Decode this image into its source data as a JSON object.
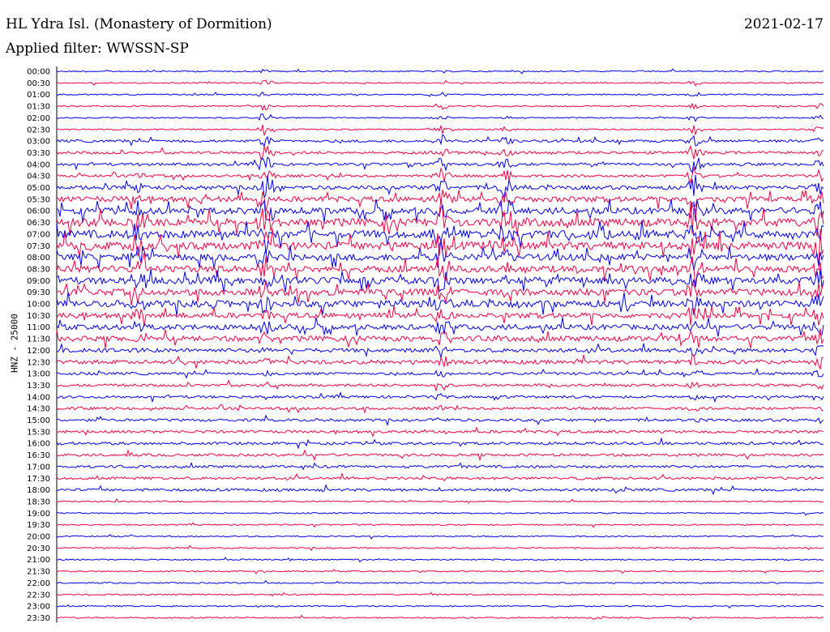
{
  "header": {
    "title": "HL Ydra Isl. (Monastery of Dormition)",
    "date": "2021-02-17",
    "filter": "Applied filter: WWSSN-SP",
    "channel_label": "HNZ - 25000"
  },
  "colors": {
    "line_a": "#0000ff",
    "line_b": "#ff0040"
  },
  "chart_data": {
    "type": "line",
    "title": "HL Ydra Isl. (Monastery of Dormition)",
    "ylabel": "HNZ - 25000",
    "trace_labels": [
      "00:00",
      "00:30",
      "01:00",
      "01:30",
      "02:00",
      "02:30",
      "03:00",
      "03:30",
      "04:00",
      "04:30",
      "05:00",
      "05:30",
      "06:00",
      "06:30",
      "07:00",
      "07:30",
      "08:00",
      "08:30",
      "09:00",
      "09:30",
      "10:00",
      "10:30",
      "11:00",
      "11:30",
      "12:00",
      "12:30",
      "13:00",
      "13:30",
      "14:00",
      "14:30",
      "15:00",
      "15:30",
      "16:00",
      "16:30",
      "17:00",
      "17:30",
      "18:00",
      "18:30",
      "19:00",
      "19:30",
      "20:00",
      "20:30",
      "21:00",
      "21:30",
      "22:00",
      "22:30",
      "23:00",
      "23:30"
    ],
    "series_colors": [
      "#0000ff",
      "#ff0040"
    ],
    "noise_level": [
      1,
      1,
      1,
      1,
      1,
      1,
      2,
      2,
      2,
      2,
      3,
      4,
      5,
      6,
      6,
      6,
      5,
      5,
      5,
      5,
      5,
      4,
      4,
      4,
      3,
      3,
      2,
      2,
      2,
      2,
      2,
      2,
      2,
      2,
      2,
      2,
      2,
      1,
      1,
      1,
      1,
      1,
      1,
      1,
      1,
      1,
      1,
      1
    ]
  }
}
